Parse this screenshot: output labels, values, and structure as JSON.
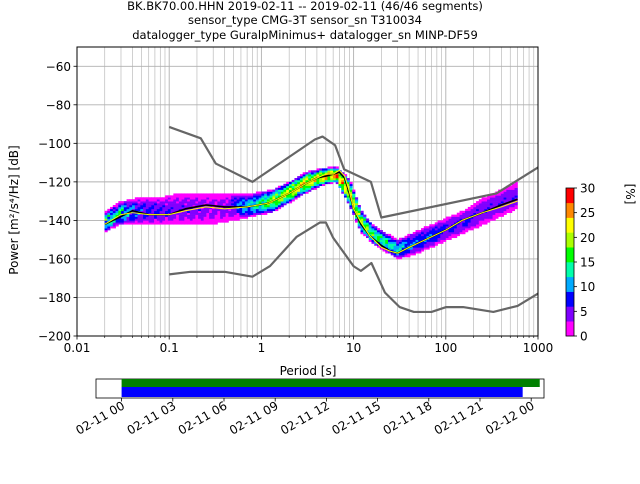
{
  "chart_data": [
    {
      "type": "heatmap",
      "title": [
        "BK.BK70.00.HHN   2019-02-11 -- 2019-02-11  (46/46 segments)",
        "sensor_type CMG-3T sensor_sn T310034",
        "datalogger_type GuralpMinimus+ datalogger_sn MINP-DF59"
      ],
      "xlabel": "Period [s]",
      "ylabel": "Power [m²/s⁴/Hz] [dB]",
      "x_scale": "log",
      "xlim": [
        0.01,
        1000
      ],
      "ylim": [
        -200,
        -50
      ],
      "grid": true,
      "x_ticks": [
        {
          "value": 0.01,
          "label": "0.01"
        },
        {
          "value": 0.1,
          "label": "0.1"
        },
        {
          "value": 1,
          "label": "1"
        },
        {
          "value": 10,
          "label": "10"
        },
        {
          "value": 100,
          "label": "100"
        },
        {
          "value": 1000,
          "label": "1000"
        }
      ],
      "y_ticks": [
        {
          "value": -60,
          "label": "−60"
        },
        {
          "value": -80,
          "label": "−80"
        },
        {
          "value": -100,
          "label": "−100"
        },
        {
          "value": -120,
          "label": "−120"
        },
        {
          "value": -140,
          "label": "−140"
        },
        {
          "value": -160,
          "label": "−160"
        },
        {
          "value": -180,
          "label": "−180"
        },
        {
          "value": -200,
          "label": "−200"
        }
      ],
      "colorbar": {
        "label": "[%]",
        "range": [
          0,
          30
        ],
        "ticks": [
          {
            "value": 0,
            "label": "0"
          },
          {
            "value": 5,
            "label": "5"
          },
          {
            "value": 10,
            "label": "10"
          },
          {
            "value": 15,
            "label": "15"
          },
          {
            "value": 20,
            "label": "20"
          },
          {
            "value": 25,
            "label": "25"
          },
          {
            "value": 30,
            "label": "30"
          }
        ],
        "colors": [
          "#ff00ff",
          "#8000ff",
          "#0000ff",
          "#00aaff",
          "#00ffaa",
          "#00ff00",
          "#aaff00",
          "#ffff00",
          "#ff8800",
          "#ff0000"
        ]
      },
      "series": [
        {
          "role": "high-noise-model",
          "color": "#666666",
          "x": [
            0.1,
            0.22,
            0.32,
            0.8,
            3.8,
            4.6,
            6.3,
            7.9,
            15.4,
            20,
            354,
            1000
          ],
          "y": [
            -91.5,
            -97.4,
            -110.5,
            -120,
            -98,
            -96.5,
            -101,
            -113.5,
            -120,
            -138.5,
            -126,
            -112.5
          ]
        },
        {
          "role": "low-noise-model",
          "color": "#666666",
          "x": [
            0.1,
            0.17,
            0.4,
            0.8,
            1.24,
            2.4,
            4.3,
            5,
            6,
            10,
            12,
            15.6,
            21.9,
            31.6,
            45,
            70,
            101,
            154,
            328,
            600,
            1000
          ],
          "y": [
            -168,
            -166.7,
            -166.7,
            -169.2,
            -163.7,
            -148.6,
            -141.1,
            -141.1,
            -149,
            -163.8,
            -166.2,
            -162.1,
            -177.5,
            -185,
            -187.5,
            -187.5,
            -185,
            -185,
            -187.5,
            -184.4,
            -178
          ]
        },
        {
          "role": "mean",
          "color": "#000000",
          "x": [
            0.02,
            0.03,
            0.04,
            0.06,
            0.1,
            0.15,
            0.25,
            0.4,
            0.7,
            1.2,
            2,
            3,
            4,
            5,
            6,
            7,
            8,
            9,
            10,
            12,
            15,
            20,
            25,
            30,
            40,
            60,
            100,
            150,
            250,
            400,
            600
          ],
          "y": [
            -142,
            -138,
            -135,
            -137,
            -137,
            -134,
            -132,
            -133,
            -133,
            -131,
            -126,
            -121,
            -118,
            -117,
            -116,
            -115,
            -118,
            -126,
            -134,
            -142,
            -148,
            -153,
            -156,
            -157,
            -154,
            -150,
            -145,
            -140,
            -136,
            -132,
            -129
          ]
        },
        {
          "role": "mode",
          "color": "#ffff00",
          "x": [
            0.02,
            0.03,
            0.04,
            0.06,
            0.1,
            0.15,
            0.25,
            0.4,
            0.7,
            1.2,
            2,
            3,
            4,
            5,
            6,
            7,
            8,
            9,
            10,
            12,
            15,
            20,
            25,
            30,
            40,
            60,
            100,
            150,
            250,
            400,
            600
          ],
          "y": [
            -142,
            -137,
            -136,
            -137,
            -137,
            -135,
            -133,
            -134,
            -133,
            -131,
            -126,
            -121,
            -118,
            -116,
            -116,
            -114,
            -117,
            -125,
            -134,
            -141,
            -148,
            -154,
            -156,
            -157,
            -154,
            -150,
            -145,
            -140,
            -136,
            -133,
            -130
          ]
        }
      ],
      "density": [
        {
          "period": 0.02,
          "db_min": -146,
          "db_max": -136,
          "peak": 25
        },
        {
          "period": 0.03,
          "db_min": -142,
          "db_max": -130,
          "peak": 22
        },
        {
          "period": 0.05,
          "db_min": -142,
          "db_max": -128,
          "peak": 12
        },
        {
          "period": 0.08,
          "db_min": -142,
          "db_max": -128,
          "peak": 10
        },
        {
          "period": 0.12,
          "db_min": -142,
          "db_max": -126,
          "peak": 8
        },
        {
          "period": 0.2,
          "db_min": -142,
          "db_max": -126,
          "peak": 8
        },
        {
          "period": 0.3,
          "db_min": -142,
          "db_max": -126,
          "peak": 6
        },
        {
          "period": 0.5,
          "db_min": -140,
          "db_max": -126,
          "peak": 8
        },
        {
          "period": 0.8,
          "db_min": -138,
          "db_max": -126,
          "peak": 12
        },
        {
          "period": 1.3,
          "db_min": -136,
          "db_max": -124,
          "peak": 18
        },
        {
          "period": 2,
          "db_min": -131,
          "db_max": -120,
          "peak": 20
        },
        {
          "period": 3,
          "db_min": -126,
          "db_max": -115,
          "peak": 22
        },
        {
          "period": 4.5,
          "db_min": -122,
          "db_max": -113,
          "peak": 22
        },
        {
          "period": 6.5,
          "db_min": -120,
          "db_max": -112,
          "peak": 26
        },
        {
          "period": 9,
          "db_min": -132,
          "db_max": -118,
          "peak": 22
        },
        {
          "period": 12,
          "db_min": -146,
          "db_max": -134,
          "peak": 18
        },
        {
          "period": 16,
          "db_min": -152,
          "db_max": -142,
          "peak": 15
        },
        {
          "period": 22,
          "db_min": -156,
          "db_max": -146,
          "peak": 14
        },
        {
          "period": 30,
          "db_min": -160,
          "db_max": -150,
          "peak": 12
        },
        {
          "period": 45,
          "db_min": -158,
          "db_max": -146,
          "peak": 8
        },
        {
          "period": 70,
          "db_min": -154,
          "db_max": -142,
          "peak": 8
        },
        {
          "period": 110,
          "db_min": -150,
          "db_max": -138,
          "peak": 6
        },
        {
          "period": 170,
          "db_min": -146,
          "db_max": -134,
          "peak": 6
        },
        {
          "period": 260,
          "db_min": -142,
          "db_max": -128,
          "peak": 5
        },
        {
          "period": 400,
          "db_min": -138,
          "db_max": -124,
          "peak": 5
        },
        {
          "period": 600,
          "db_min": -134,
          "db_max": -120,
          "peak": 5
        }
      ]
    },
    {
      "type": "bar",
      "role": "data-coverage-timeline",
      "xlim": [
        "2019-02-10 22:30",
        "2019-02-12 00:45"
      ],
      "tick_labels": [
        "02-11 00",
        "02-11 03",
        "02-11 06",
        "02-11 09",
        "02-11 12",
        "02-11 15",
        "02-11 18",
        "02-11 21",
        "02-12 00"
      ],
      "tick_hours": [
        0,
        3,
        6,
        9,
        12,
        15,
        18,
        21,
        24
      ],
      "series": [
        {
          "role": "data-availability",
          "color": "#008000",
          "start_hour": 0,
          "end_hour": 24.5
        },
        {
          "role": "psd-used",
          "color": "#0000ff",
          "start_hour": 0,
          "end_hour": 23.5
        }
      ]
    }
  ]
}
